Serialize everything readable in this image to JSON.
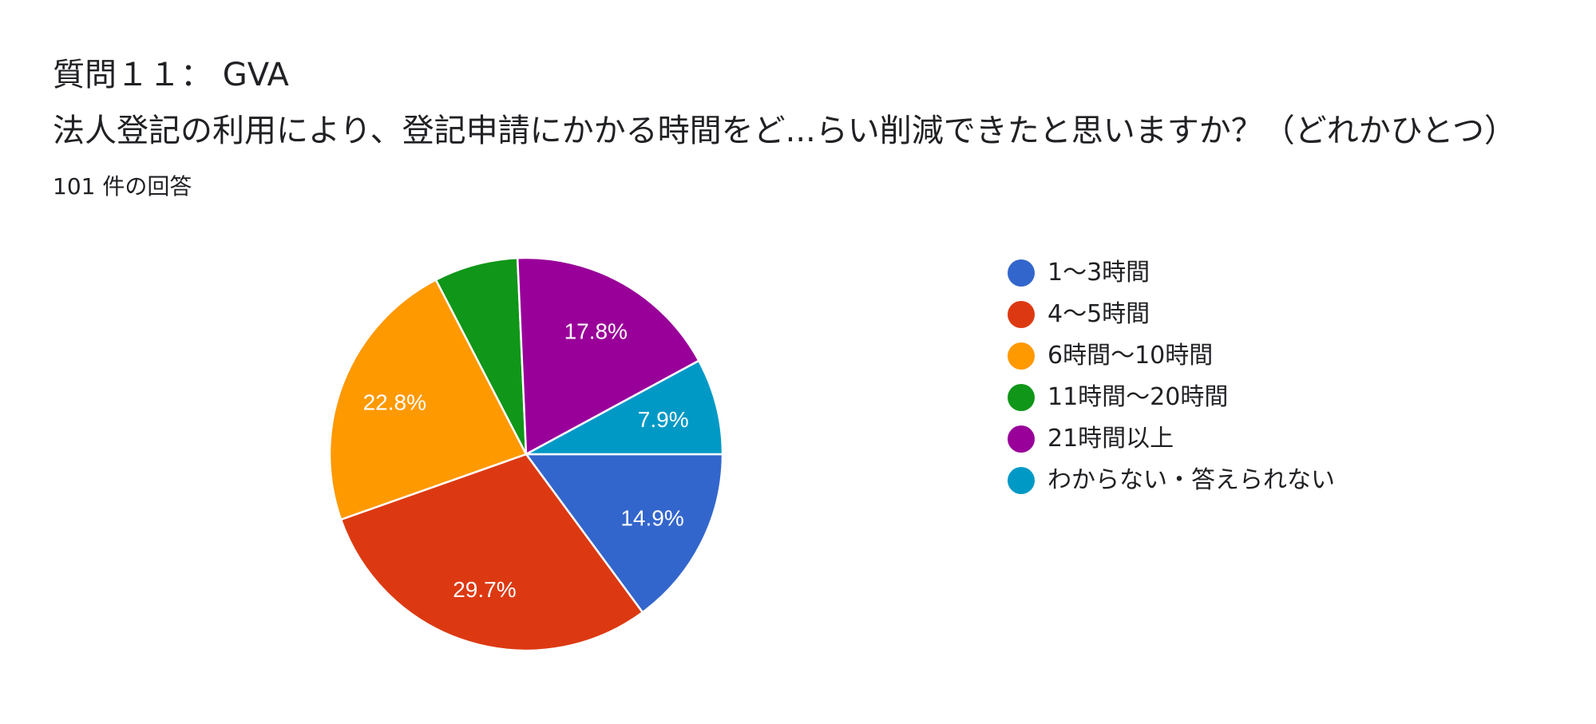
{
  "header": {
    "title": "質問１１： GVA",
    "subtitle": "法人登記の利用により、登記申請にかかる時間をど...らい削減できたと思いますか？（どれかひとつ）",
    "response_count": "101 件の回答"
  },
  "chart_data": {
    "type": "pie",
    "title": "質問１１： GVA",
    "subtitle": "法人登記の利用により、登記申請にかかる時間をど...らい削減できたと思いますか？（どれかひとつ）",
    "legend_position": "right",
    "slices": [
      {
        "label": "1〜3時間",
        "value": 14.9,
        "display": "14.9%",
        "color": "#3366cc"
      },
      {
        "label": "4〜5時間",
        "value": 29.7,
        "display": "29.7%",
        "color": "#dc3912"
      },
      {
        "label": "6時間〜10時間",
        "value": 22.8,
        "display": "22.8%",
        "color": "#ff9900"
      },
      {
        "label": "11時間〜20時間",
        "value": 6.9,
        "display": "",
        "color": "#109618"
      },
      {
        "label": "21時間以上",
        "value": 17.8,
        "display": "17.8%",
        "color": "#990099"
      },
      {
        "label": "わからない・答えられない",
        "value": 7.9,
        "display": "7.9%",
        "color": "#0099c6"
      }
    ]
  }
}
